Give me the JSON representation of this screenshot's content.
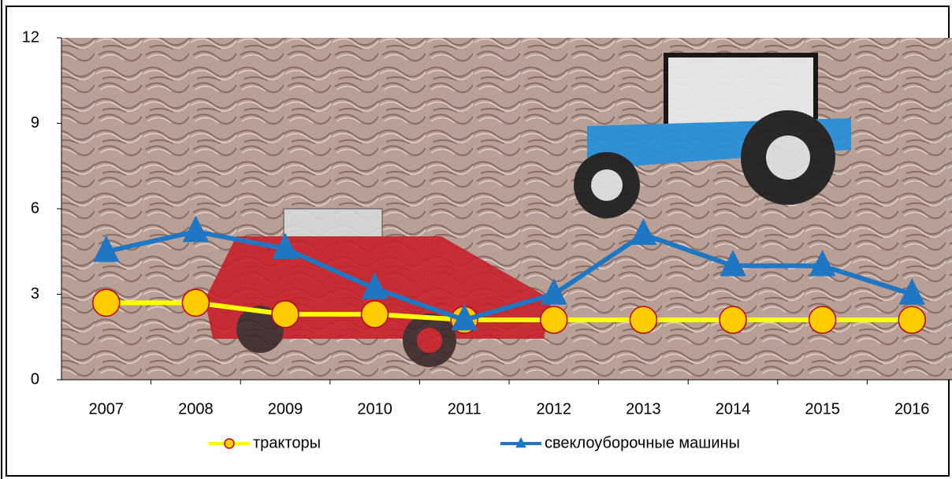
{
  "chart_data": {
    "type": "line",
    "categories": [
      "2007",
      "2008",
      "2009",
      "2010",
      "2011",
      "2012",
      "2013",
      "2014",
      "2015",
      "2016"
    ],
    "series": [
      {
        "name": "тракторы",
        "color": "#ffff00",
        "marker": "circle",
        "marker_fill": "#ffcc00",
        "marker_edge": "#c00000",
        "values": [
          2.7,
          2.7,
          2.3,
          2.3,
          2.1,
          2.1,
          2.1,
          2.1,
          2.1,
          2.1
        ]
      },
      {
        "name": "свеклоуборочные машины",
        "color": "#1f77c4",
        "marker": "triangle",
        "marker_fill": "#1f77c4",
        "marker_edge": "#1f77c4",
        "values": [
          4.5,
          5.2,
          4.6,
          3.2,
          2.1,
          3.0,
          5.1,
          4.0,
          4.0,
          3.0
        ]
      }
    ],
    "ylim": [
      0,
      12
    ],
    "yticks": [
      0,
      3,
      6,
      9,
      12
    ],
    "grid": false
  }
}
